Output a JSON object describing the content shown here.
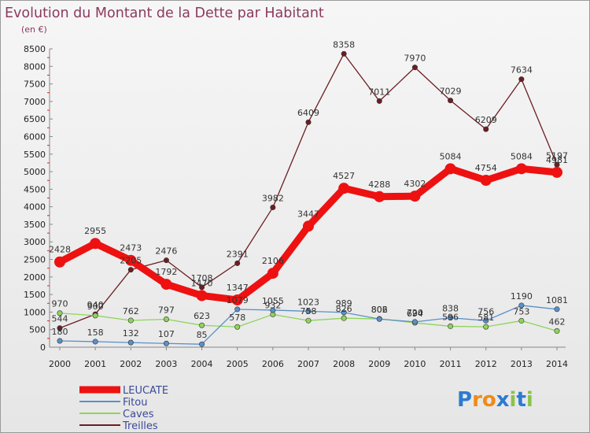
{
  "title": "Evolution du Montant de la Dette par Habitant",
  "subtitle": "(en €)",
  "brand": "Proxiti",
  "colors": {
    "LEUCATE": "#ee1111",
    "Fitou": "#5a90c8",
    "Caves": "#8ed45a",
    "Treilles": "#6b1e22",
    "title": "#8b3a5e"
  },
  "chart_data": {
    "type": "line",
    "title": "Evolution du Montant de la Dette par Habitant",
    "subtitle": "(en €)",
    "x": [
      "2000",
      "2001",
      "2002",
      "2003",
      "2004",
      "2005",
      "2006",
      "2007",
      "2008",
      "2009",
      "2010",
      "2011",
      "2012",
      "2013",
      "2014"
    ],
    "ylim": [
      0,
      8500
    ],
    "yticks": [
      0,
      500,
      1000,
      1500,
      2000,
      2500,
      3000,
      3500,
      4000,
      4500,
      5000,
      5500,
      6000,
      6500,
      7000,
      7500,
      8000,
      8500
    ],
    "grid": false,
    "legend_position": "bottom-left",
    "series": [
      {
        "name": "LEUCATE",
        "values": [
          2428,
          2955,
          2473,
          1792,
          1470,
          1347,
          2106,
          3447,
          4527,
          4288,
          4302,
          5084,
          4754,
          5084,
          4981
        ]
      },
      {
        "name": "Fitou",
        "values": [
          180,
          158,
          132,
          107,
          85,
          1079,
          1055,
          1023,
          989,
          802,
          720,
          838,
          756,
          1190,
          1081
        ]
      },
      {
        "name": "Caves",
        "values": [
          970,
          900,
          762,
          797,
          623,
          578,
          932,
          758,
          826,
          806,
          694,
          596,
          581,
          753,
          462
        ]
      },
      {
        "name": "Treilles",
        "values": [
          544,
          940,
          2205,
          2476,
          1708,
          2391,
          3982,
          6409,
          8358,
          7011,
          7970,
          7029,
          6209,
          7634,
          5197
        ]
      }
    ]
  }
}
